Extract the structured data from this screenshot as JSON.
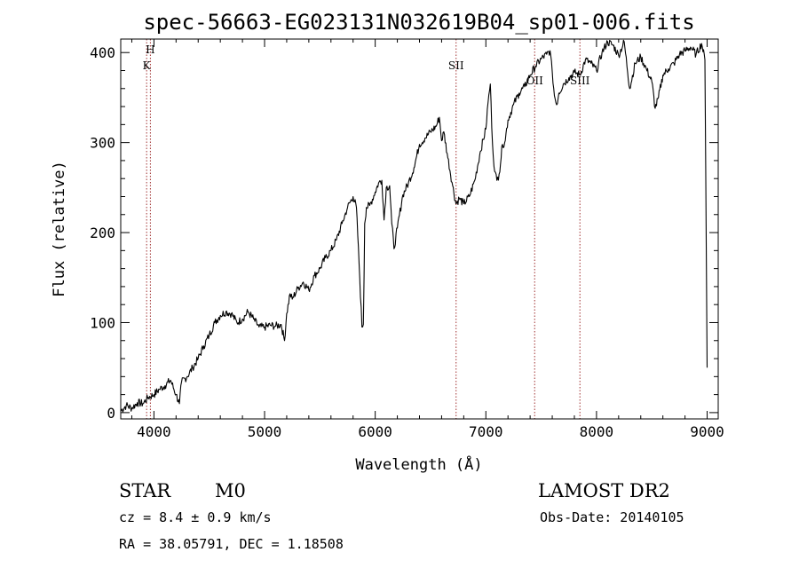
{
  "chart_data": {
    "type": "line",
    "title": "spec-56663-EG023131N032619B04_sp01-006.fits",
    "xlabel": "Wavelength (Å)",
    "ylabel": "Flux (relative)",
    "xlim": [
      3700,
      9100
    ],
    "ylim": [
      -7,
      415
    ],
    "xticks": [
      "4000",
      "5000",
      "6000",
      "7000",
      "8000",
      "9000"
    ],
    "yticks": [
      "0",
      "100",
      "200",
      "300",
      "400"
    ],
    "grid": false,
    "series": [
      {
        "x": [
          3700,
          3750,
          3800,
          3850,
          3900,
          3950,
          4000,
          4050,
          4100,
          4150,
          4200,
          4230,
          4250,
          4300,
          4350,
          4400,
          4450,
          4500,
          4550,
          4600,
          4650,
          4700,
          4750,
          4800,
          4850,
          4900,
          4950,
          5000,
          5050,
          5100,
          5150,
          5180,
          5200,
          5230,
          5250,
          5300,
          5350,
          5400,
          5450,
          5500,
          5550,
          5600,
          5650,
          5700,
          5750,
          5800,
          5830,
          5860,
          5880,
          5893,
          5905,
          5920,
          5950,
          6000,
          6030,
          6060,
          6080,
          6100,
          6130,
          6150,
          6170,
          6200,
          6250,
          6300,
          6350,
          6400,
          6450,
          6500,
          6550,
          6580,
          6600,
          6620,
          6650,
          6700,
          6730,
          6760,
          6800,
          6850,
          6900,
          6950,
          7000,
          7020,
          7040,
          7060,
          7080,
          7100,
          7120,
          7150,
          7170,
          7200,
          7250,
          7300,
          7350,
          7400,
          7450,
          7500,
          7550,
          7580,
          7600,
          7620,
          7640,
          7660,
          7700,
          7750,
          7800,
          7850,
          7900,
          7950,
          8000,
          8050,
          8100,
          8150,
          8200,
          8250,
          8300,
          8350,
          8400,
          8450,
          8500,
          8530,
          8560,
          8600,
          8650,
          8700,
          8750,
          8800,
          8850,
          8900,
          8950,
          8980,
          9000
        ],
        "values": [
          2,
          8,
          5,
          11,
          10,
          17,
          20,
          26,
          30,
          36,
          20,
          10,
          34,
          40,
          50,
          60,
          74,
          86,
          100,
          108,
          112,
          110,
          100,
          104,
          112,
          104,
          95,
          95,
          97,
          96,
          98,
          80,
          110,
          132,
          126,
          138,
          145,
          136,
          152,
          160,
          172,
          180,
          192,
          210,
          228,
          240,
          228,
          150,
          95,
          98,
          210,
          228,
          230,
          245,
          255,
          258,
          214,
          250,
          252,
          210,
          182,
          205,
          242,
          255,
          272,
          298,
          305,
          312,
          318,
          328,
          302,
          312,
          288,
          252,
          232,
          238,
          232,
          240,
          258,
          290,
          315,
          345,
          365,
          298,
          268,
          258,
          265,
          298,
          300,
          325,
          342,
          355,
          362,
          375,
          385,
          393,
          398,
          402,
          378,
          352,
          342,
          355,
          365,
          372,
          378,
          375,
          392,
          388,
          380,
          400,
          412,
          408,
          397,
          412,
          360,
          388,
          395,
          382,
          368,
          338,
          350,
          375,
          382,
          388,
          398,
          402,
          406,
          398,
          410,
          392,
          50
        ]
      }
    ],
    "annotations": [
      {
        "x": 3934,
        "label": "K"
      },
      {
        "x": 3968,
        "label": "H"
      },
      {
        "x": 6731,
        "label": "SII"
      },
      {
        "x": 7441,
        "label": "OII"
      },
      {
        "x": 7850,
        "label": "SIII"
      }
    ]
  },
  "info": {
    "class": "STAR",
    "subclass": "M0",
    "survey": "LAMOST DR2",
    "cz": "cz = 8.4 ± 0.9 km/s",
    "obsdate": "Obs-Date: 20140105",
    "radec": "RA =  38.05791, DEC =   1.18508"
  }
}
